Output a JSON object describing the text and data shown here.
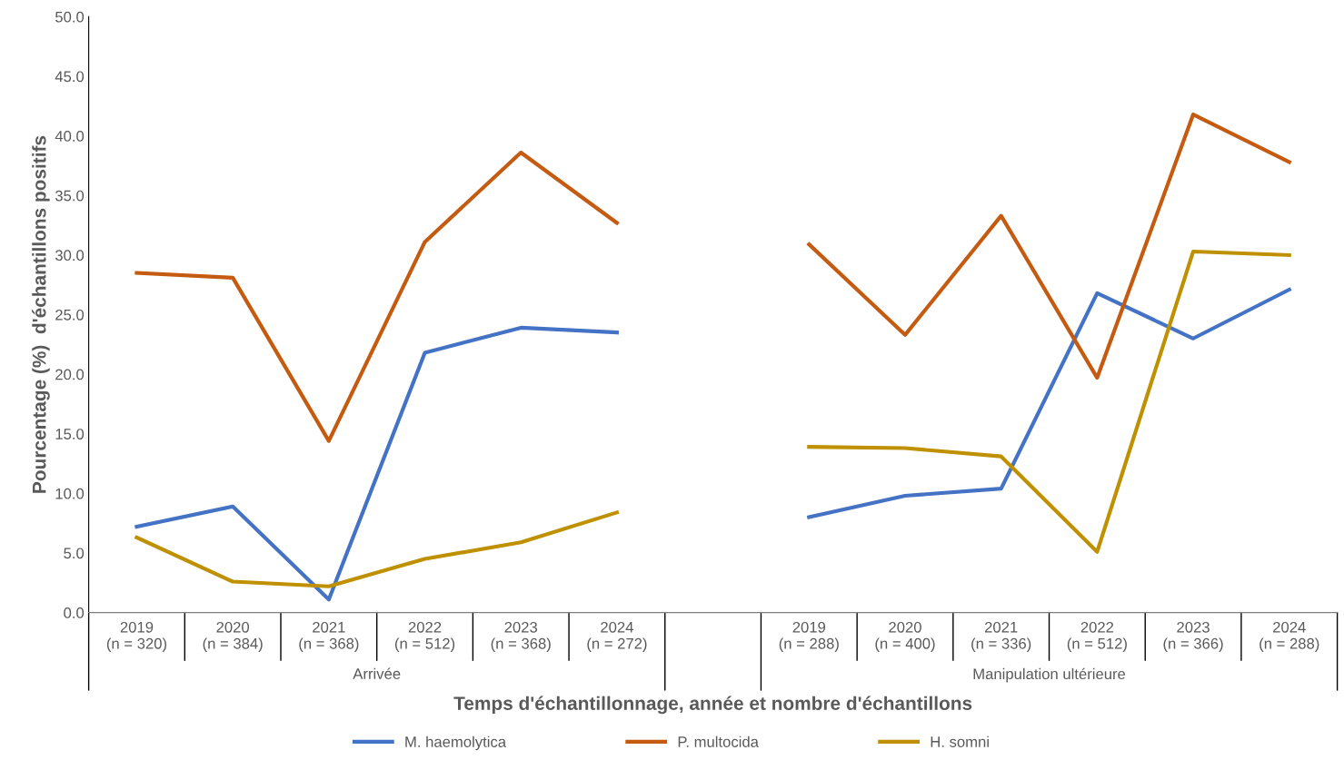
{
  "chart_data": {
    "type": "line",
    "ylabel": "Pourcentage (%)  d'échantillons positifs",
    "xlabel": "Temps d'échantillonnage, année et nombre d'échantillons",
    "categories": [
      "2019\n(n = 320)",
      "2020\n(n = 384)",
      "2021\n(n = 368)",
      "2022\n(n = 512)",
      "2023\n(n = 368)",
      "2024\n(n = 272)",
      null,
      "2019\n(n = 288)",
      "2020\n(n = 400)",
      "2021\n(n = 336)",
      "2022\n(n = 512)",
      "2023\n(n = 366)",
      "2024\n(n = 288)"
    ],
    "annotations": [
      "Arrivée",
      "Manipulation ultérieure"
    ],
    "series": [
      {
        "name": "M. haemolytica",
        "color": "#4472c4",
        "values": [
          7.2,
          8.9,
          1.1,
          21.8,
          23.9,
          23.5,
          null,
          8.0,
          9.8,
          10.4,
          26.8,
          23.0,
          27.1
        ]
      },
      {
        "name": "P. multocida",
        "color": "#c55a11",
        "values": [
          28.5,
          28.1,
          14.4,
          31.1,
          38.6,
          32.7,
          null,
          30.9,
          23.3,
          33.3,
          19.7,
          41.8,
          37.8
        ]
      },
      {
        "name": "H. somni",
        "color": "#bf9000",
        "values": [
          6.3,
          2.6,
          2.2,
          4.5,
          5.9,
          8.4,
          null,
          13.9,
          13.8,
          13.1,
          5.1,
          30.3,
          30.0
        ]
      }
    ],
    "ylim": [
      0,
      50
    ],
    "yticks": [
      {
        "value": 0,
        "label": "0.0"
      },
      {
        "value": 5,
        "label": "5.0"
      },
      {
        "value": 10,
        "label": "10.0"
      },
      {
        "value": 15,
        "label": "15.0"
      },
      {
        "value": 20,
        "label": "20.0"
      },
      {
        "value": 25,
        "label": "25.0"
      },
      {
        "value": 30,
        "label": "30.0"
      },
      {
        "value": 35,
        "label": "35.0"
      },
      {
        "value": 40,
        "label": "40.0"
      },
      {
        "value": 45,
        "label": "45.0"
      },
      {
        "value": 50,
        "label": "50.0"
      }
    ],
    "grid": false,
    "legend": "bottom",
    "marker": "none",
    "line_style": "solid"
  }
}
